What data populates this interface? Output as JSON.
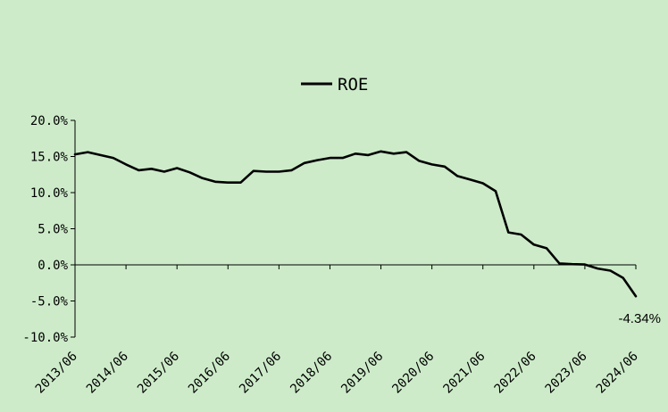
{
  "chart_data": {
    "type": "line",
    "title": "",
    "xlabel": "",
    "ylabel": "",
    "legend": {
      "position": "top-center"
    },
    "grid": false,
    "ylim": [
      -10,
      20
    ],
    "yticks": [
      20,
      15,
      10,
      5,
      0,
      -5,
      -10
    ],
    "ytick_labels": [
      "20.0%",
      "15.0%",
      "10.0%",
      "5.0%",
      "0.0%",
      "-5.0%",
      "-10.0%"
    ],
    "xtick_labels": [
      "2013/06",
      "2014/06",
      "2015/06",
      "2016/06",
      "2017/06",
      "2018/06",
      "2019/06",
      "2020/06",
      "2021/06",
      "2022/06",
      "2023/06",
      "2024/06"
    ],
    "x": [
      "2013/06",
      "2013/09",
      "2013/12",
      "2014/03",
      "2014/06",
      "2014/09",
      "2014/12",
      "2015/03",
      "2015/06",
      "2015/09",
      "2015/12",
      "2016/03",
      "2016/06",
      "2016/09",
      "2016/12",
      "2017/03",
      "2017/06",
      "2017/09",
      "2017/12",
      "2018/03",
      "2018/06",
      "2018/09",
      "2018/12",
      "2019/03",
      "2019/06",
      "2019/09",
      "2019/12",
      "2020/03",
      "2020/06",
      "2020/09",
      "2020/12",
      "2021/03",
      "2021/06",
      "2021/09",
      "2021/12",
      "2022/03",
      "2022/06",
      "2022/09",
      "2022/12",
      "2023/03",
      "2023/06",
      "2023/09",
      "2023/12",
      "2024/03",
      "2024/06"
    ],
    "series": [
      {
        "name": "ROE",
        "color": "#000000",
        "values": [
          15.3,
          15.6,
          15.2,
          14.8,
          13.9,
          13.1,
          13.3,
          12.9,
          13.4,
          12.8,
          12.0,
          11.5,
          11.4,
          11.4,
          13.0,
          12.9,
          12.9,
          13.1,
          14.1,
          14.5,
          14.8,
          14.8,
          15.4,
          15.2,
          15.7,
          15.4,
          15.6,
          14.4,
          13.9,
          13.6,
          12.3,
          11.8,
          11.3,
          10.2,
          4.5,
          4.2,
          2.8,
          2.3,
          0.2,
          0.1,
          0.05,
          -0.5,
          -0.8,
          -1.8,
          -4.34
        ]
      }
    ],
    "annotations": [
      {
        "text": "-4.34%",
        "x": "2024/06",
        "y": -4.34
      }
    ]
  }
}
